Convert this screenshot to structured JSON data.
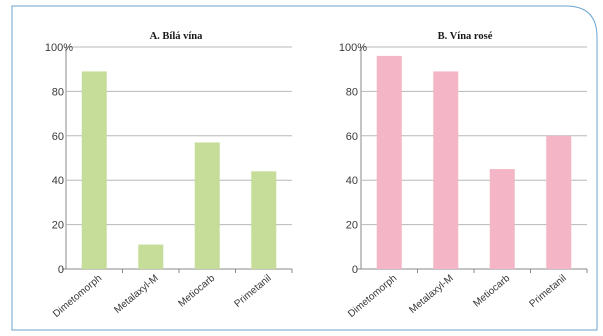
{
  "colors": {
    "frame": "#6aa3cf",
    "grid": "#b8b8b8",
    "axis": "#8a8a8a",
    "white_bar": "#c5dd98",
    "rose_bar": "#f4b6c6"
  },
  "chart_data": [
    {
      "type": "bar",
      "title": "A. Bílá vína",
      "categories": [
        "Dimetomorph",
        "Metalaxyl-M",
        "Metiocarb",
        "Primetanil"
      ],
      "values": [
        89,
        11,
        57,
        44
      ],
      "ylim": [
        0,
        100
      ],
      "yticks": [
        "0",
        "20",
        "40",
        "60",
        "80",
        "100%"
      ],
      "grid": true
    },
    {
      "type": "bar",
      "title": "B. Vína rosé",
      "categories": [
        "Dimetomorph",
        "Metalaxyl-M",
        "Metiocarb",
        "Primetanil"
      ],
      "values": [
        96,
        89,
        45,
        60
      ],
      "ylim": [
        0,
        100
      ],
      "yticks": [
        "0",
        "20",
        "40",
        "60",
        "80",
        "100%"
      ],
      "grid": true
    }
  ]
}
